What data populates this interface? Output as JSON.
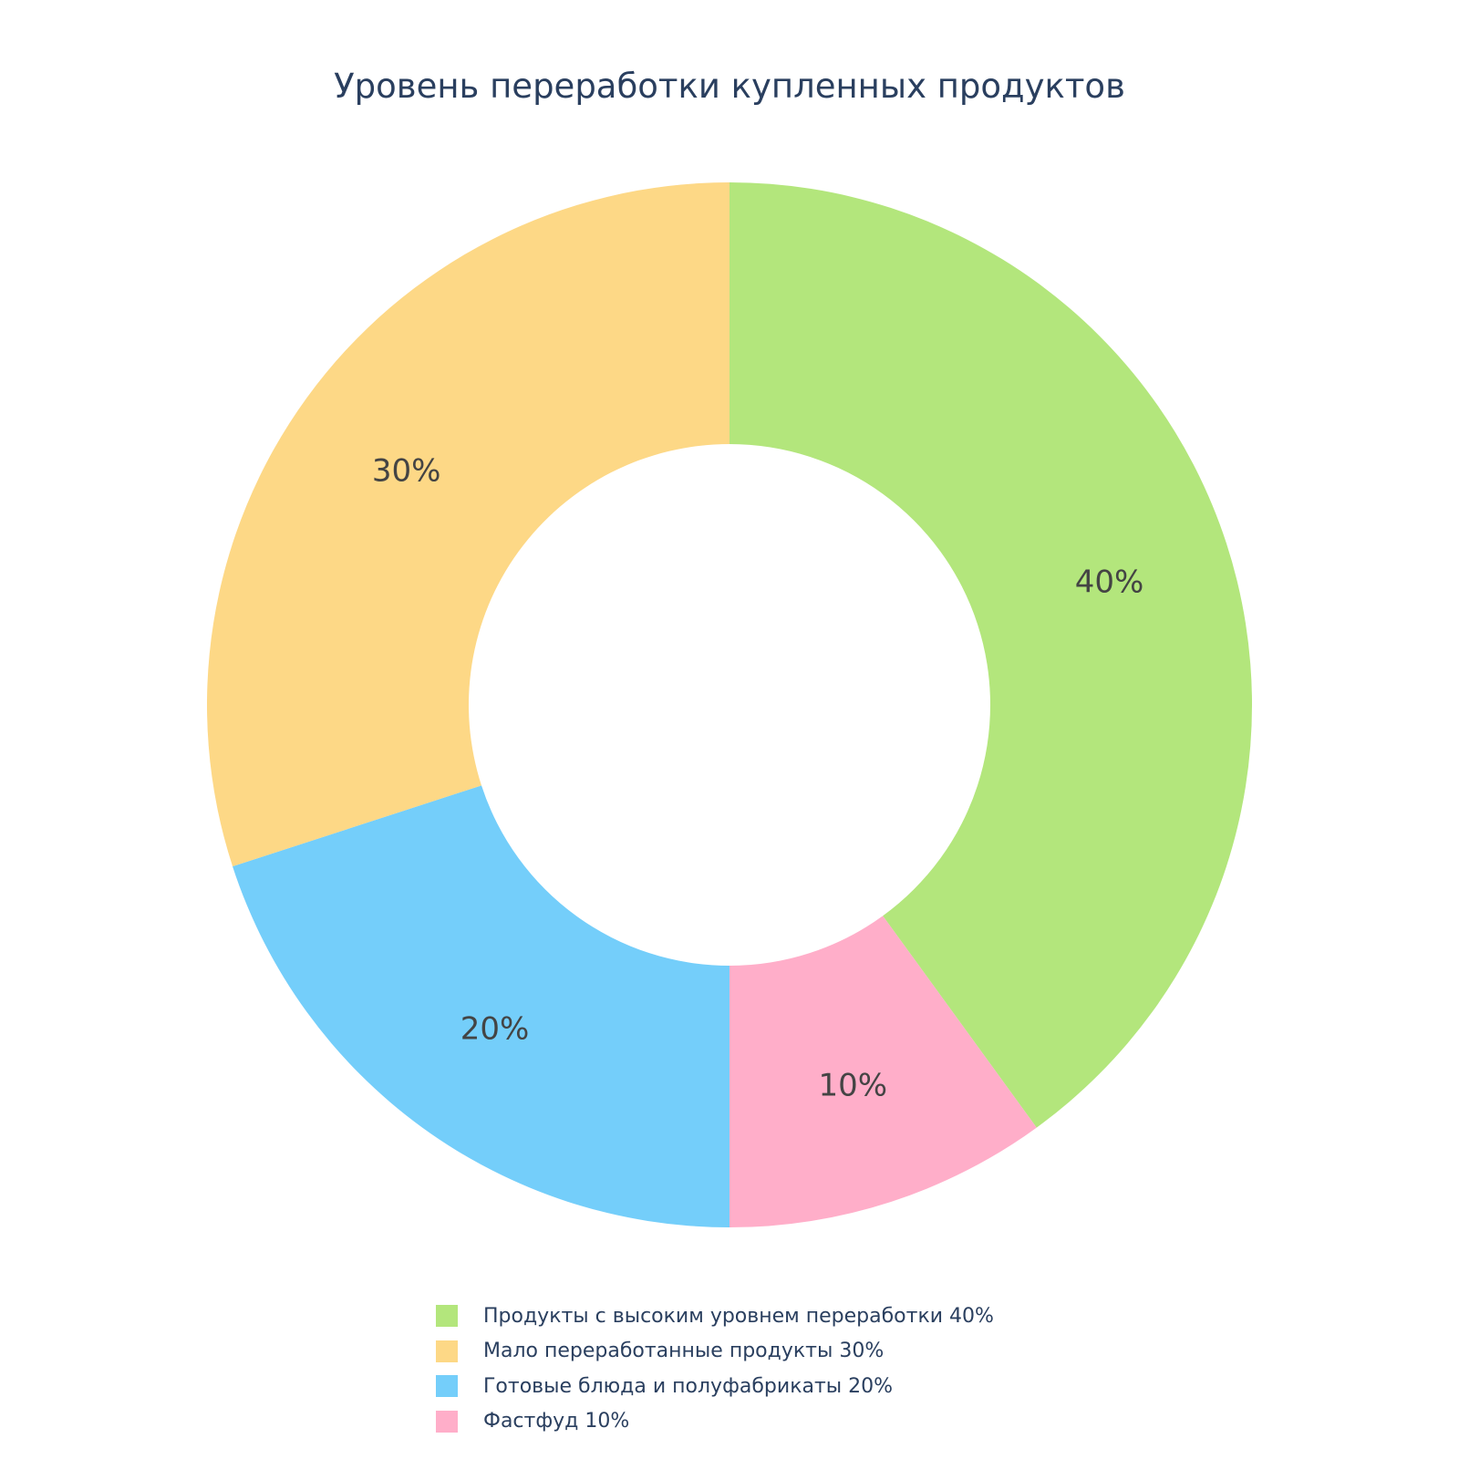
{
  "chart_data": {
    "type": "pie",
    "hole": true,
    "title": "Уровень переработки купленных продуктов",
    "categories": [
      "Продукты с высоким уровнем переработки 40%",
      "Мало переработанные продукты 30%",
      "Готовые блюда и полуфабрикаты 20%",
      "Фастфуд 10%"
    ],
    "values": [
      40,
      30,
      20,
      10
    ],
    "slice_labels": [
      "40%",
      "30%",
      "20%",
      "10%"
    ],
    "slice_order": [
      0,
      3,
      2,
      1
    ],
    "direction": "clockwise",
    "start": "top",
    "colors": [
      "#b3e67c",
      "#fdd886",
      "#74cefa",
      "#ffaec9"
    ],
    "legend_position": "bottom-center"
  }
}
